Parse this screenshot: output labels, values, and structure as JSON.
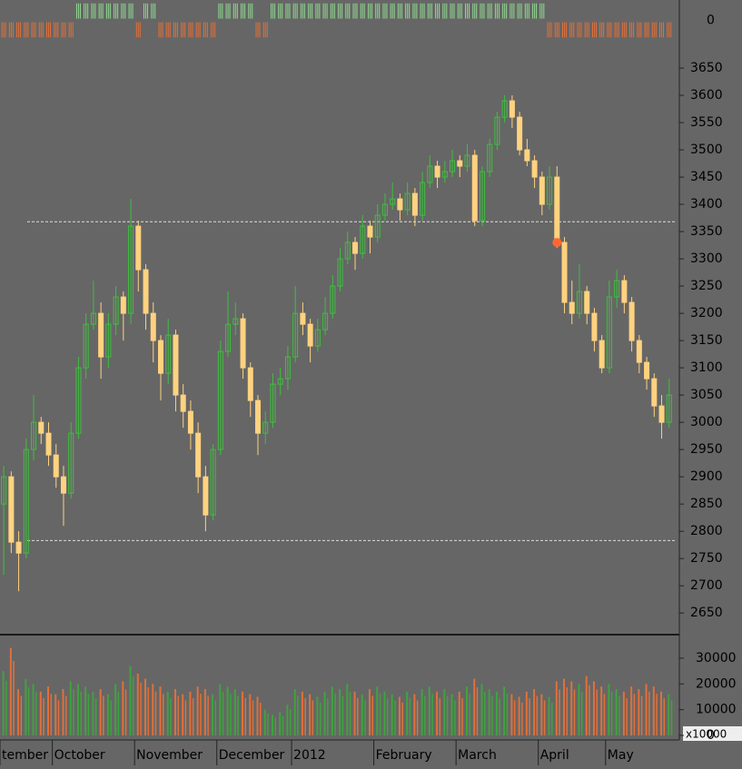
{
  "chart_data": {
    "type": "candlestick",
    "candles": [
      [
        2850,
        2920,
        2720,
        2900
      ],
      [
        2900,
        2910,
        2760,
        2780
      ],
      [
        2780,
        2800,
        2690,
        2760
      ],
      [
        2760,
        2970,
        2750,
        2950
      ],
      [
        2950,
        3050,
        2930,
        3000
      ],
      [
        3000,
        3010,
        2960,
        2980
      ],
      [
        2980,
        3000,
        2920,
        2940
      ],
      [
        2940,
        2960,
        2880,
        2900
      ],
      [
        2900,
        2920,
        2810,
        2870
      ],
      [
        2870,
        3000,
        2860,
        2980
      ],
      [
        2980,
        3120,
        2970,
        3100
      ],
      [
        3100,
        3200,
        3080,
        3180
      ],
      [
        3180,
        3260,
        3170,
        3200
      ],
      [
        3200,
        3220,
        3080,
        3120
      ],
      [
        3120,
        3200,
        3100,
        3180
      ],
      [
        3180,
        3250,
        3160,
        3230
      ],
      [
        3230,
        3240,
        3150,
        3200
      ],
      [
        3200,
        3410,
        3180,
        3360
      ],
      [
        3360,
        3370,
        3240,
        3280
      ],
      [
        3280,
        3290,
        3170,
        3200
      ],
      [
        3200,
        3220,
        3110,
        3150
      ],
      [
        3150,
        3160,
        3040,
        3090
      ],
      [
        3090,
        3190,
        3070,
        3160
      ],
      [
        3160,
        3170,
        3020,
        3050
      ],
      [
        3050,
        3070,
        2990,
        3020
      ],
      [
        3020,
        3040,
        2950,
        2980
      ],
      [
        2980,
        3000,
        2870,
        2900
      ],
      [
        2900,
        2920,
        2800,
        2830
      ],
      [
        2830,
        2960,
        2820,
        2950
      ],
      [
        2950,
        3150,
        2940,
        3130
      ],
      [
        3130,
        3240,
        3120,
        3180
      ],
      [
        3180,
        3220,
        3160,
        3190
      ],
      [
        3190,
        3200,
        3080,
        3100
      ],
      [
        3100,
        3110,
        3010,
        3040
      ],
      [
        3040,
        3050,
        2940,
        2980
      ],
      [
        2980,
        3020,
        2960,
        3000
      ],
      [
        3000,
        3090,
        2990,
        3070
      ],
      [
        3070,
        3100,
        3050,
        3080
      ],
      [
        3080,
        3140,
        3060,
        3120
      ],
      [
        3120,
        3250,
        3110,
        3200
      ],
      [
        3200,
        3220,
        3160,
        3180
      ],
      [
        3180,
        3190,
        3110,
        3140
      ],
      [
        3140,
        3190,
        3130,
        3170
      ],
      [
        3170,
        3230,
        3160,
        3200
      ],
      [
        3200,
        3270,
        3190,
        3250
      ],
      [
        3250,
        3320,
        3240,
        3300
      ],
      [
        3300,
        3350,
        3290,
        3330
      ],
      [
        3330,
        3340,
        3280,
        3310
      ],
      [
        3310,
        3380,
        3300,
        3360
      ],
      [
        3360,
        3370,
        3310,
        3340
      ],
      [
        3340,
        3400,
        3330,
        3380
      ],
      [
        3380,
        3420,
        3370,
        3400
      ],
      [
        3400,
        3440,
        3390,
        3410
      ],
      [
        3410,
        3420,
        3370,
        3390
      ],
      [
        3390,
        3440,
        3380,
        3420
      ],
      [
        3420,
        3430,
        3360,
        3380
      ],
      [
        3380,
        3460,
        3370,
        3440
      ],
      [
        3440,
        3490,
        3430,
        3470
      ],
      [
        3470,
        3480,
        3430,
        3450
      ],
      [
        3450,
        3480,
        3440,
        3460
      ],
      [
        3460,
        3500,
        3450,
        3480
      ],
      [
        3480,
        3490,
        3450,
        3470
      ],
      [
        3470,
        3510,
        3460,
        3490
      ],
      [
        3490,
        3500,
        3360,
        3370
      ],
      [
        3370,
        3470,
        3360,
        3460
      ],
      [
        3460,
        3520,
        3450,
        3510
      ],
      [
        3510,
        3570,
        3500,
        3560
      ],
      [
        3560,
        3600,
        3550,
        3590
      ],
      [
        3590,
        3600,
        3540,
        3560
      ],
      [
        3560,
        3570,
        3490,
        3500
      ],
      [
        3500,
        3520,
        3470,
        3480
      ],
      [
        3480,
        3490,
        3430,
        3450
      ],
      [
        3450,
        3460,
        3380,
        3400
      ],
      [
        3400,
        3470,
        3390,
        3450
      ],
      [
        3450,
        3470,
        3320,
        3330
      ],
      [
        3330,
        3340,
        3200,
        3220
      ],
      [
        3220,
        3260,
        3180,
        3200
      ],
      [
        3200,
        3290,
        3190,
        3240
      ],
      [
        3240,
        3250,
        3180,
        3200
      ],
      [
        3200,
        3210,
        3130,
        3150
      ],
      [
        3150,
        3160,
        3090,
        3100
      ],
      [
        3100,
        3260,
        3090,
        3230
      ],
      [
        3230,
        3280,
        3210,
        3260
      ],
      [
        3260,
        3270,
        3200,
        3220
      ],
      [
        3220,
        3230,
        3130,
        3150
      ],
      [
        3150,
        3160,
        3090,
        3110
      ],
      [
        3110,
        3120,
        3060,
        3080
      ],
      [
        3080,
        3090,
        3010,
        3030
      ],
      [
        3030,
        3050,
        2970,
        3000
      ],
      [
        3000,
        3080,
        2990,
        3050
      ]
    ],
    "volume": [
      25000,
      34000,
      18000,
      22000,
      20000,
      17000,
      19000,
      16000,
      18000,
      21000,
      20000,
      19000,
      17000,
      18000,
      16000,
      20000,
      21000,
      27000,
      24000,
      22000,
      20000,
      19000,
      17000,
      18000,
      16000,
      17000,
      19000,
      18000,
      16000,
      20000,
      19000,
      18000,
      17000,
      16000,
      15000,
      10000,
      8000,
      9000,
      12000,
      18000,
      17000,
      16000,
      15000,
      17000,
      19000,
      18000,
      20000,
      17000,
      16000,
      18000,
      19000,
      17000,
      16000,
      15000,
      17000,
      16000,
      18000,
      19000,
      17000,
      18000,
      16000,
      17000,
      19000,
      22000,
      20000,
      18000,
      17000,
      19000,
      16000,
      15000,
      17000,
      18000,
      16000,
      15000,
      21000,
      22000,
      21000,
      20000,
      23000,
      21000,
      19000,
      20000,
      18000,
      17000,
      19000,
      18000,
      20000,
      19000,
      17000,
      16000
    ],
    "signal": [
      -1,
      -1,
      -1,
      -1,
      -1,
      -1,
      -1,
      -1,
      -1,
      -1,
      1,
      1,
      1,
      1,
      1,
      1,
      1,
      1,
      -1,
      1,
      1,
      -1,
      -1,
      -1,
      -1,
      -1,
      -1,
      -1,
      -1,
      1,
      1,
      1,
      1,
      1,
      -1,
      -1,
      1,
      1,
      1,
      1,
      1,
      1,
      1,
      1,
      1,
      1,
      1,
      1,
      1,
      1,
      1,
      1,
      1,
      1,
      1,
      1,
      1,
      1,
      1,
      1,
      1,
      1,
      1,
      1,
      1,
      1,
      1,
      1,
      1,
      1,
      1,
      1,
      1,
      -1,
      -1,
      -1,
      -1,
      -1,
      -1,
      -1,
      -1,
      -1,
      -1,
      -1,
      -1,
      -1,
      -1,
      -1,
      -1,
      -1
    ],
    "up_color": "#3fbf3f",
    "down_color": "#ffd27f",
    "volume_up_color": "#3fa33f",
    "volume_down_color": "#e0703a",
    "ylim": [
      2612,
      3775
    ],
    "yticks": [
      2650,
      2700,
      2750,
      2800,
      2850,
      2900,
      2950,
      3000,
      3050,
      3100,
      3150,
      3200,
      3250,
      3300,
      3350,
      3400,
      3450,
      3500,
      3550,
      3600,
      3650
    ],
    "volume_ylim": [
      0,
      38800
    ],
    "volume_yticks": [
      0,
      10000,
      20000,
      30000
    ],
    "volume_unit": "x10000",
    "signal_ylim": [
      -1.2,
      1.2
    ],
    "signal_yticks": [
      0
    ],
    "reference_lines": [
      3368,
      2783
    ],
    "marker": {
      "index": 74,
      "value": 3330,
      "color": "#ff6633"
    },
    "xlim": [
      -0.5,
      90
    ],
    "xticks": [
      {
        "value": 0,
        "label": "tember"
      },
      {
        "value": 7,
        "label": "October"
      },
      {
        "value": 18,
        "label": "November"
      },
      {
        "value": 29,
        "label": "December"
      },
      {
        "value": 39,
        "label": "2012"
      },
      {
        "value": 50,
        "label": "February"
      },
      {
        "value": 61,
        "label": "March"
      },
      {
        "value": 72,
        "label": "April"
      },
      {
        "value": 81,
        "label": "May"
      }
    ]
  }
}
